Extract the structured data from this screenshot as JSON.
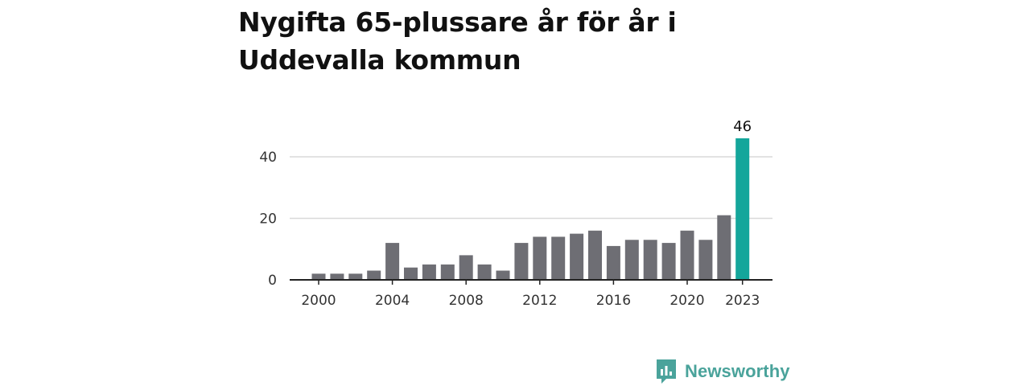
{
  "title": "Nygifta 65-plussare år för år i Uddevalla kommun",
  "brand": {
    "name": "Newsworthy",
    "icon": "newsworthy-logo-icon",
    "color": "#4aa39b"
  },
  "colors": {
    "bar": "#6e6e74",
    "highlight": "#14a69b",
    "grid": "#d9d9d9",
    "axis": "#222222"
  },
  "chart_data": {
    "type": "bar",
    "title": "Nygifta 65-plussare år för år i Uddevalla kommun",
    "xlabel": "",
    "ylabel": "",
    "categories": [
      "2000",
      "2001",
      "2002",
      "2003",
      "2004",
      "2005",
      "2006",
      "2007",
      "2008",
      "2009",
      "2010",
      "2011",
      "2012",
      "2013",
      "2014",
      "2015",
      "2016",
      "2017",
      "2018",
      "2019",
      "2020",
      "2021",
      "2022",
      "2023"
    ],
    "values": [
      2,
      2,
      2,
      3,
      12,
      4,
      5,
      5,
      8,
      5,
      3,
      12,
      14,
      14,
      15,
      16,
      11,
      13,
      13,
      12,
      16,
      13,
      21,
      46
    ],
    "ylim": [
      0,
      46
    ],
    "yticks": [
      0,
      20,
      40
    ],
    "xtick_labels": [
      "2000",
      "2004",
      "2008",
      "2012",
      "2016",
      "2020",
      "2023"
    ],
    "highlight": {
      "category": "2023",
      "label": "46"
    },
    "grid": true
  }
}
